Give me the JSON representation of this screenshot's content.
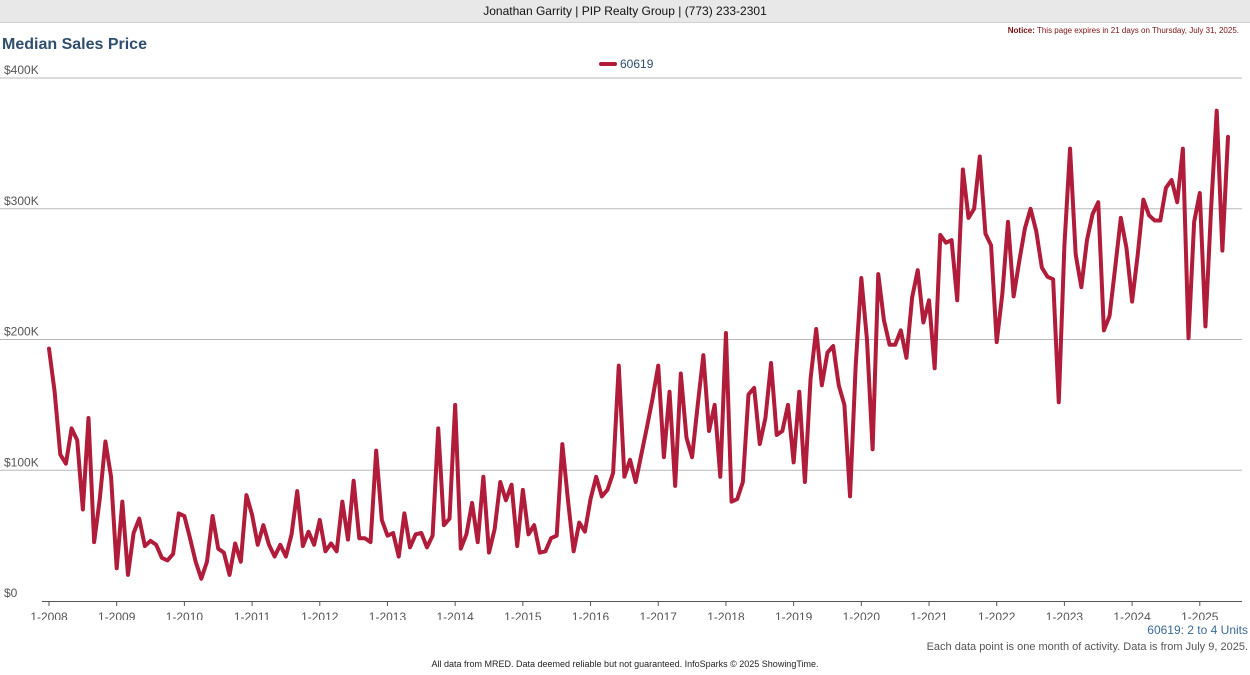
{
  "header": {
    "text": "Jonathan Garrity | PIP Realty Group | (773) 233-2301"
  },
  "notice": {
    "label": "Notice:",
    "text": "This page expires in 21 days on Thursday, July 31, 2025."
  },
  "footer": {
    "units": "60619: 2 to 4 Units",
    "note": "Each data point is one month of activity. Data is from July 9, 2025.",
    "credit": "All data from MRED. Data deemed reliable but not guaranteed. InfoSparks © 2025 ShowingTime."
  },
  "chart_data": {
    "type": "line",
    "title": "Median Sales Price",
    "xlabel": "",
    "ylabel": "",
    "ylim": [
      0,
      400000
    ],
    "yticks": [
      0,
      100000,
      200000,
      300000,
      400000
    ],
    "ytick_labels": [
      "$0",
      "$100K",
      "$200K",
      "$300K",
      "$400K"
    ],
    "xtick_labels": [
      "1-2008",
      "1-2009",
      "1-2010",
      "1-2011",
      "1-2012",
      "1-2013",
      "1-2014",
      "1-2015",
      "1-2016",
      "1-2017",
      "1-2018",
      "1-2019",
      "1-2020",
      "1-2021",
      "1-2022",
      "1-2023",
      "1-2024",
      "1-2025"
    ],
    "x_start": "2008-01",
    "x_end": "2025-06",
    "grid": true,
    "legend_position": "top-center",
    "series": [
      {
        "name": "60619",
        "color": "#b01c3a",
        "values": [
          193000,
          160000,
          112000,
          105000,
          132000,
          123000,
          70000,
          140000,
          45000,
          78000,
          122000,
          95000,
          25000,
          76000,
          20000,
          52000,
          63000,
          42000,
          46000,
          43000,
          33000,
          31000,
          36000,
          67000,
          65000,
          48000,
          30000,
          17000,
          30000,
          65000,
          40000,
          37000,
          20000,
          44000,
          30000,
          81000,
          66000,
          43000,
          58000,
          43000,
          34000,
          43000,
          34000,
          51000,
          84000,
          42000,
          53000,
          43000,
          62000,
          38000,
          44000,
          38000,
          76000,
          47000,
          92000,
          48000,
          48000,
          45000,
          115000,
          62000,
          50000,
          52000,
          34000,
          67000,
          41000,
          51000,
          52000,
          41000,
          50000,
          132000,
          58000,
          63000,
          150000,
          40000,
          51000,
          75000,
          45000,
          95000,
          37000,
          55000,
          91000,
          77000,
          89000,
          42000,
          85000,
          51000,
          58000,
          37000,
          38000,
          48000,
          50000,
          120000,
          77000,
          38000,
          60000,
          53000,
          78000,
          95000,
          80000,
          85000,
          98000,
          180000,
          95000,
          108000,
          91000,
          112000,
          133000,
          155000,
          180000,
          110000,
          160000,
          88000,
          174000,
          125000,
          110000,
          150000,
          188000,
          130000,
          150000,
          95000,
          205000,
          76000,
          78000,
          91000,
          158000,
          163000,
          120000,
          140000,
          182000,
          127000,
          130000,
          150000,
          106000,
          160000,
          91000,
          170000,
          208000,
          165000,
          190000,
          195000,
          165000,
          150000,
          80000,
          180000,
          247000,
          200000,
          116000,
          250000,
          215000,
          196000,
          196000,
          207000,
          186000,
          232000,
          253000,
          213000,
          230000,
          178000,
          280000,
          274000,
          276000,
          230000,
          330000,
          293000,
          300000,
          340000,
          281000,
          272000,
          198000,
          235000,
          290000,
          233000,
          260000,
          285000,
          300000,
          283000,
          255000,
          248000,
          246000,
          152000,
          272000,
          346000,
          265000,
          240000,
          276000,
          296000,
          305000,
          207000,
          218000,
          255000,
          293000,
          270000,
          229000,
          265000,
          307000,
          295000,
          291000,
          291000,
          316000,
          322000,
          305000,
          346000,
          201000,
          290000,
          312000,
          210000,
          300000,
          375000,
          268000,
          355000
        ]
      }
    ]
  }
}
